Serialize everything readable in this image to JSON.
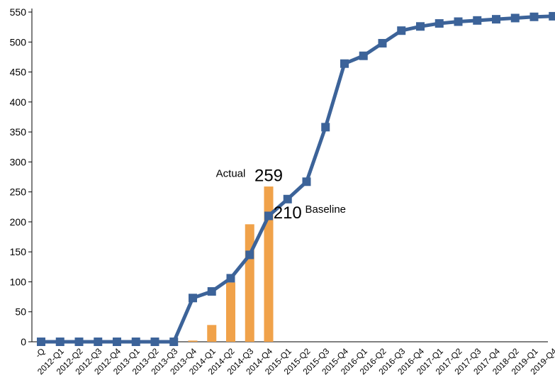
{
  "chart_data": {
    "type": "bar+line",
    "categories": [
      "-Q",
      "2012-Q1",
      "2012-Q2",
      "2012-Q3",
      "2012-Q4",
      "2013-Q1",
      "2013-Q2",
      "2013-Q3",
      "2013-Q4",
      "2014-Q1",
      "2014-Q2",
      "2014-Q3",
      "2014-Q4",
      "2015-Q1",
      "2015-Q2",
      "2015-Q3",
      "2015-Q4",
      "2016-Q1",
      "2016-Q2",
      "2016-Q3",
      "2016-Q4",
      "2017-Q1",
      "2017-Q2",
      "2017-Q3",
      "2017-Q4",
      "2018-Q2",
      "2019-Q1",
      "2019-Q4"
    ],
    "series": [
      {
        "name": "Actual",
        "type": "bar",
        "color": "#F0A24A",
        "values": [
          0,
          0,
          0,
          0,
          0,
          0,
          0,
          0,
          2,
          28,
          99,
          196,
          259,
          null,
          null,
          null,
          null,
          null,
          null,
          null,
          null,
          null,
          null,
          null,
          null,
          null,
          null,
          null
        ]
      },
      {
        "name": "Baseline",
        "type": "line",
        "color": "#3C6399",
        "values": [
          0,
          0,
          0,
          0,
          0,
          0,
          0,
          0,
          73,
          84,
          106,
          145,
          210,
          238,
          267,
          358,
          464,
          477,
          498,
          519,
          526,
          531,
          534,
          536,
          538,
          540,
          542,
          543
        ]
      }
    ],
    "annotations": [
      {
        "text": "Actual",
        "size": "small",
        "anchor_category": 10,
        "anchor_value": 275
      },
      {
        "text": "259",
        "size": "large",
        "anchor_category": 12,
        "anchor_value": 268
      },
      {
        "text": "210",
        "size": "large",
        "anchor_category": 13,
        "anchor_value": 206
      },
      {
        "text": "Baseline",
        "size": "small",
        "anchor_category": 15,
        "anchor_value": 215
      }
    ],
    "ylim": [
      0,
      550
    ],
    "yticks": [
      0,
      50,
      100,
      150,
      200,
      250,
      300,
      350,
      400,
      450,
      500,
      550
    ],
    "grid": false,
    "legend": "none",
    "title": "",
    "xlabel": "",
    "ylabel": ""
  }
}
